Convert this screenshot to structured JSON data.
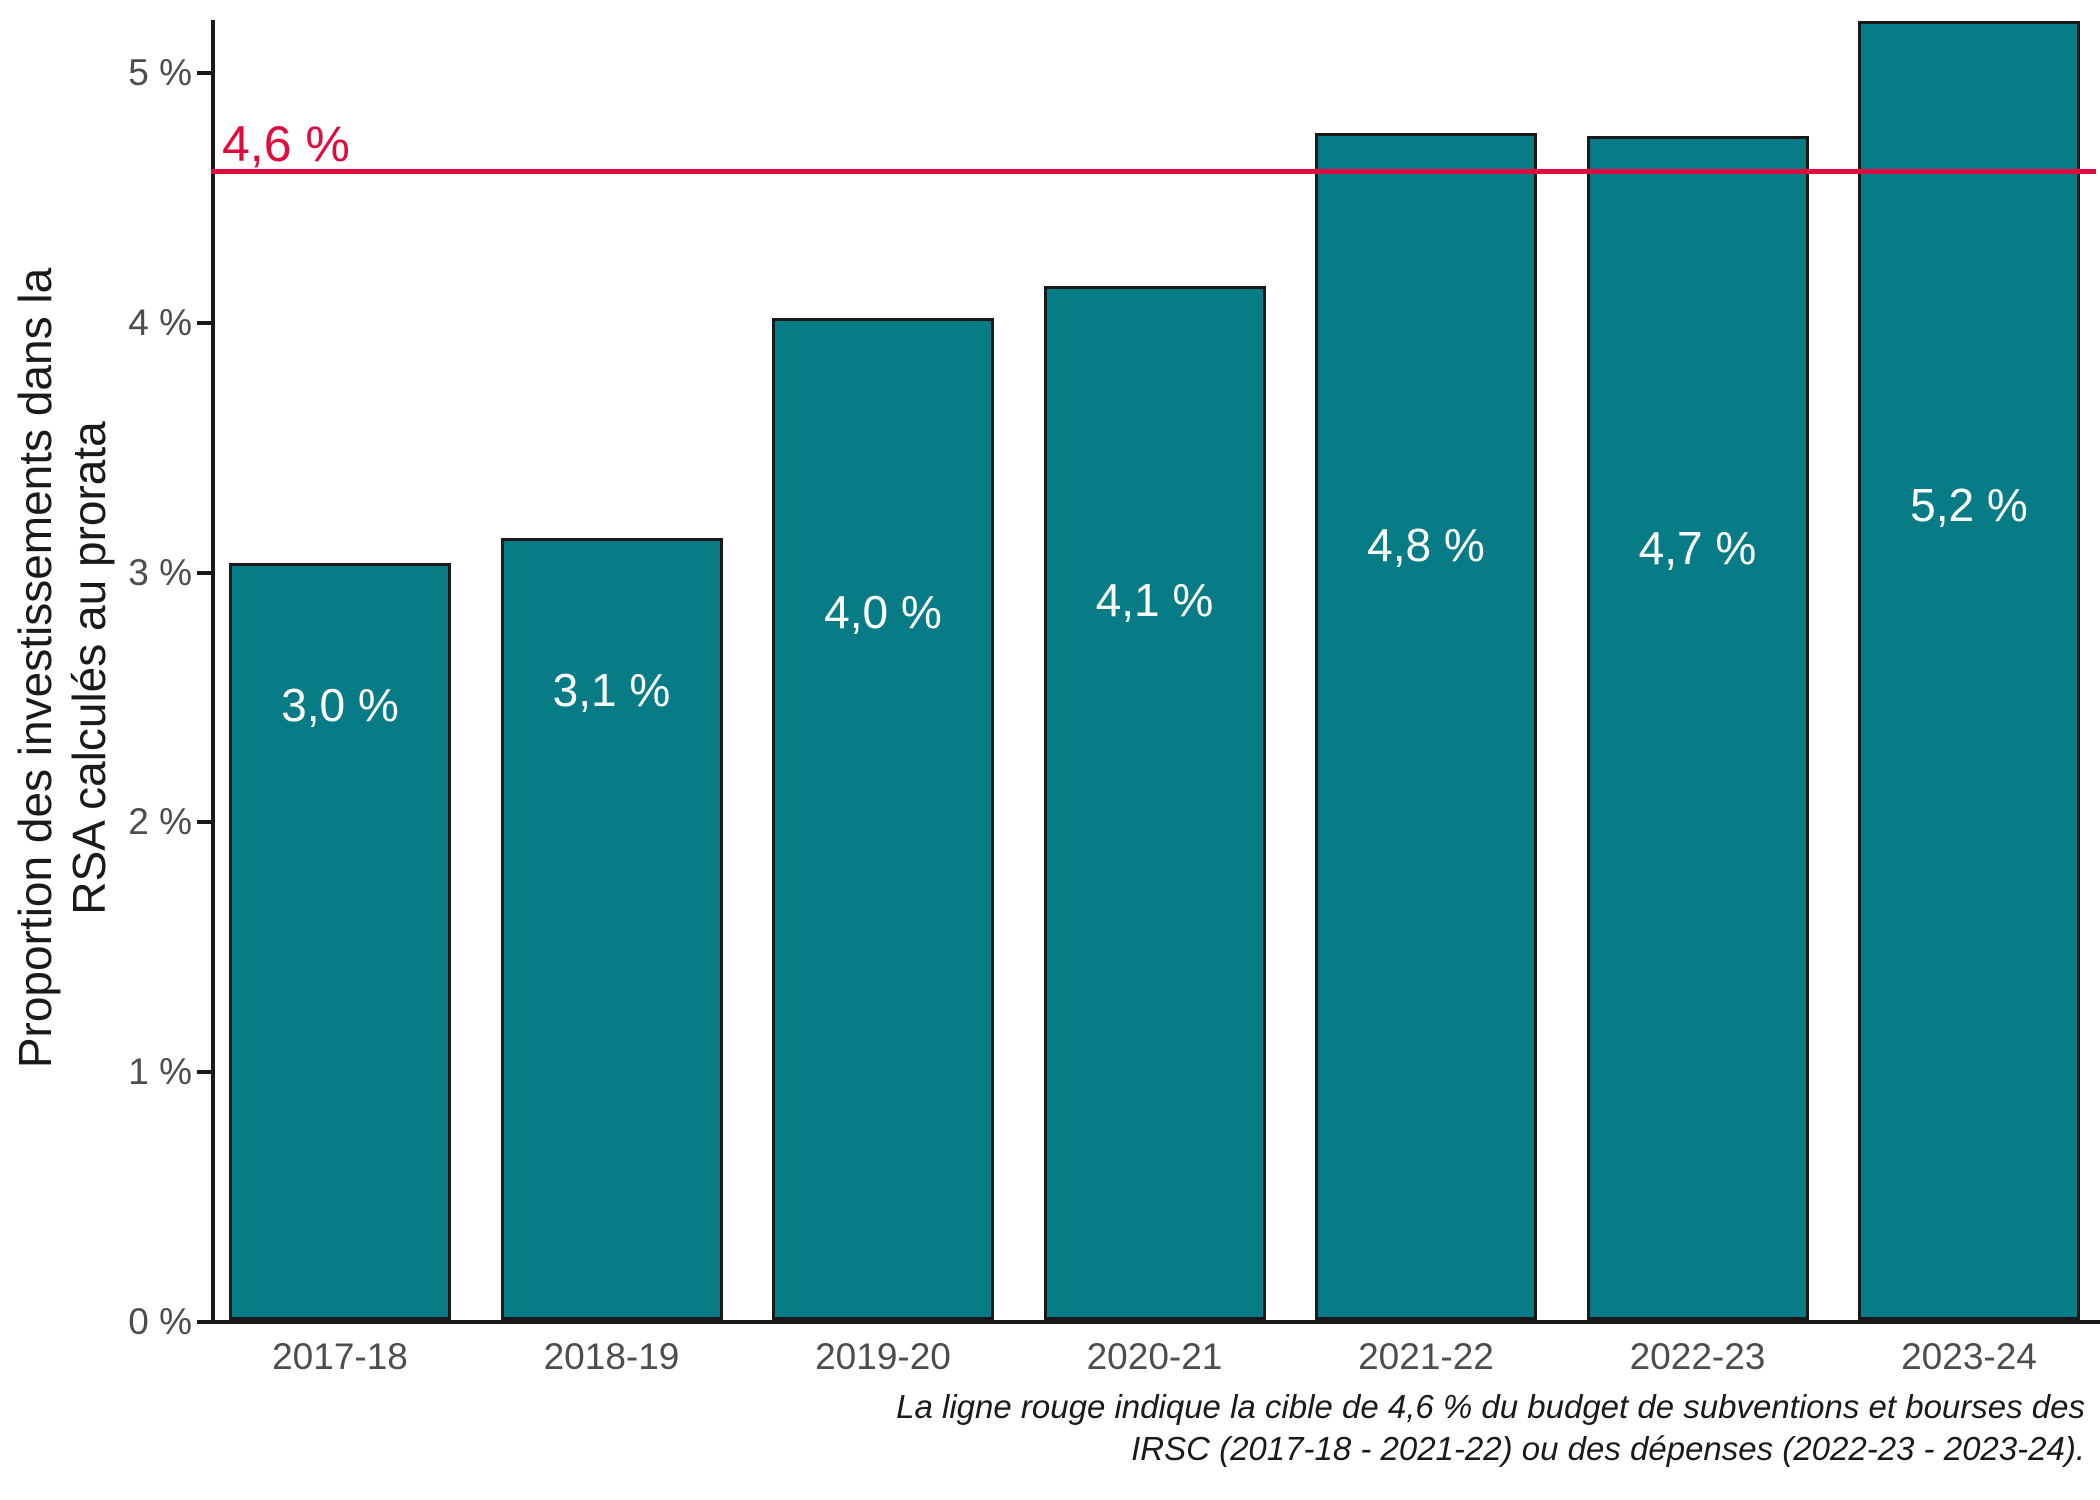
{
  "chart_data": {
    "type": "bar",
    "title": "",
    "categories": [
      "2017-18",
      "2018-19",
      "2019-20",
      "2020-21",
      "2021-22",
      "2022-23",
      "2023-24"
    ],
    "values": [
      3.03,
      3.13,
      4.01,
      4.14,
      4.75,
      4.74,
      5.2
    ],
    "bar_labels": [
      "3,0 %",
      "3,1 %",
      "4,0 %",
      "4,1 %",
      "4,8 %",
      "4,7 %",
      "5,2 %"
    ],
    "ylabel_line1": "Proportion des investissements dans la",
    "ylabel_line2": "RSA calculés au prorata",
    "xlabel": "",
    "y_tick_labels": [
      "0 %",
      "1 %",
      "2 %",
      "3 %",
      "4 %",
      "5 %"
    ],
    "y_tick_values": [
      0,
      1,
      2,
      3,
      4,
      5
    ],
    "ylim": [
      0,
      5.2
    ],
    "grid": "off",
    "legend": "none",
    "target_line": {
      "value": 4.6,
      "label": "4,6 %",
      "color": "#E00A3F"
    },
    "caption_line1": "La ligne rouge indique la cible de 4,6 % du budget de subventions et bourses des",
    "caption_line2": "IRSC (2017-18 - 2021-22) ou des dépenses (2022-23 - 2023-24).",
    "colors": {
      "bar_fill": "#077C87",
      "bar_outline": "#1A1A1A",
      "axis": "#1A1A1A",
      "tick_label_text": "#4D4D4D",
      "bar_label_text": "#FFFFFF",
      "target_line": "#E00A3F"
    }
  }
}
